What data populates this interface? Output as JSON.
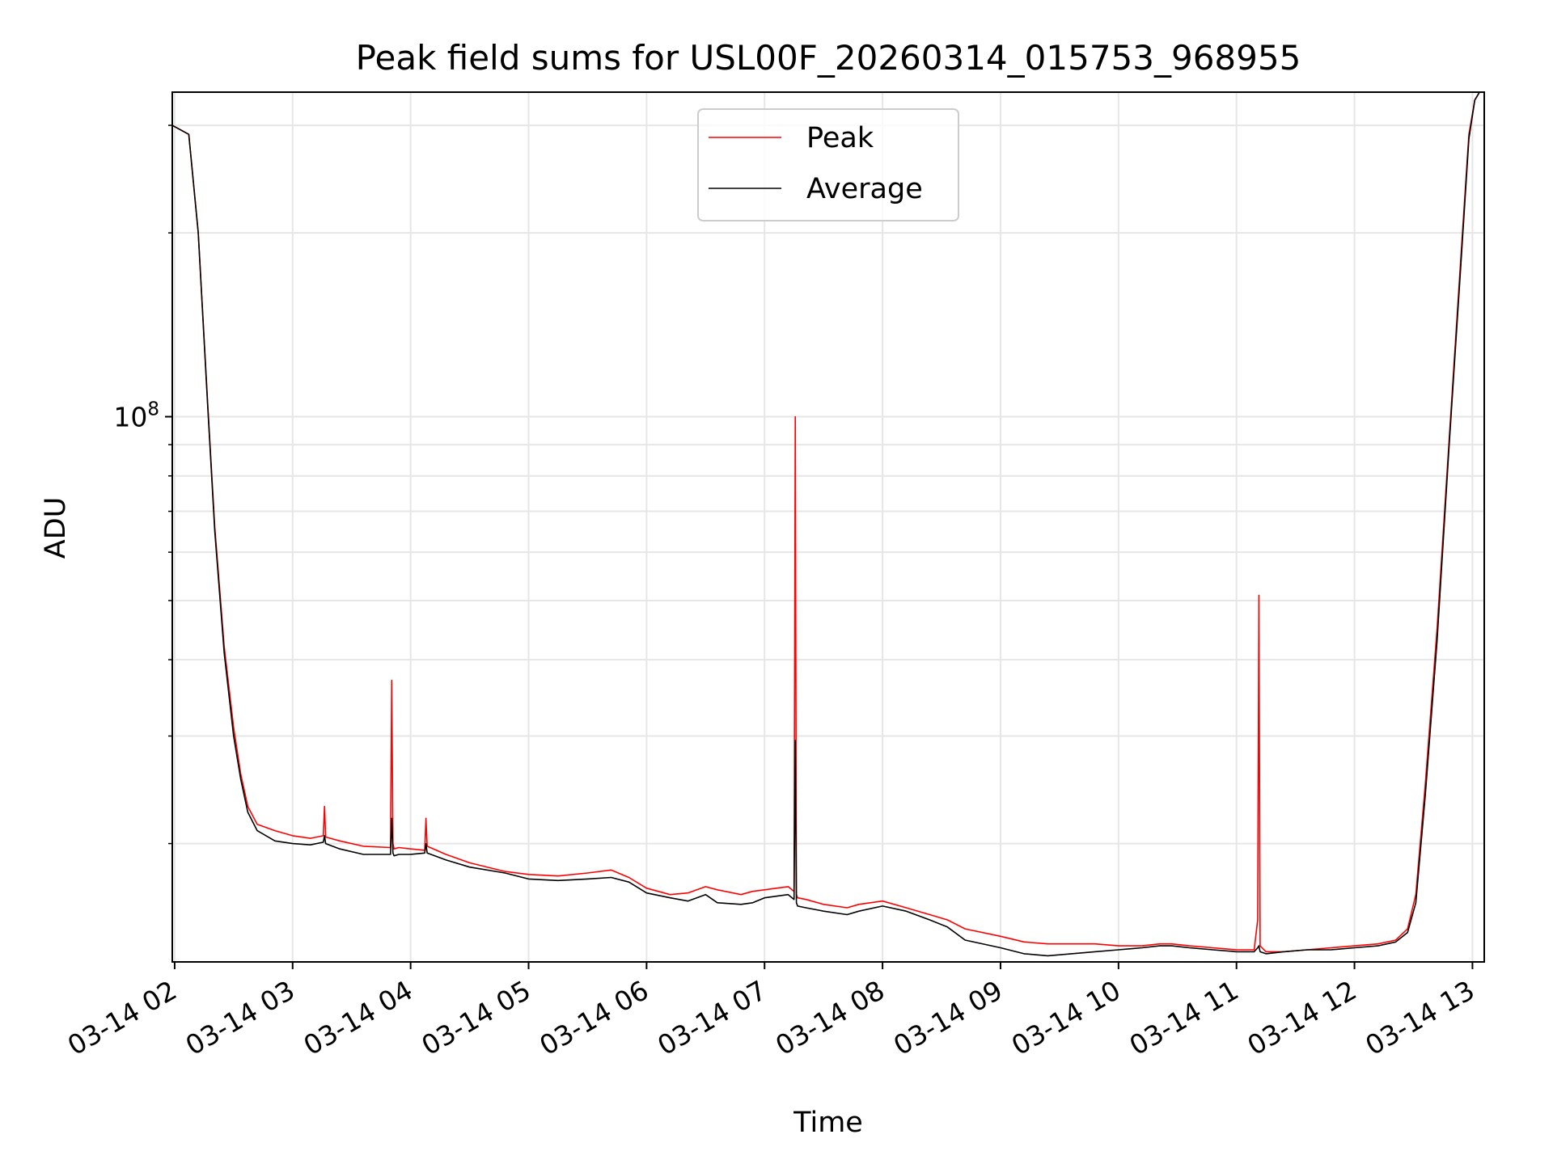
{
  "chart_data": {
    "type": "line",
    "title": "Peak field sums for USL00F_20260314_015753_968955",
    "xlabel": "Time",
    "ylabel": "ADU",
    "yscale": "log",
    "ylim": [
      12800000,
      340000000
    ],
    "xlim": [
      1.98,
      13.1
    ],
    "x_tick_values": [
      2,
      3,
      4,
      5,
      6,
      7,
      8,
      9,
      10,
      11,
      12,
      13
    ],
    "x_tick_labels": [
      "03-14 02",
      "03-14 03",
      "03-14 04",
      "03-14 05",
      "03-14 06",
      "03-14 07",
      "03-14 08",
      "03-14 09",
      "03-14 10",
      "03-14 11",
      "03-14 12",
      "03-14 13"
    ],
    "y_tick_label_base": "10",
    "y_tick_label_exp": "8",
    "y_major_tick": 100000000,
    "y_minor_ticks": [
      20000000,
      30000000,
      40000000,
      50000000,
      60000000,
      70000000,
      80000000,
      90000000,
      200000000,
      300000000
    ],
    "grid": true,
    "legend": {
      "position": "upper center",
      "entries": [
        "Peak",
        "Average"
      ]
    },
    "colors": {
      "Peak": "#ff0000",
      "Average": "#000000"
    },
    "series": [
      {
        "name": "Peak",
        "x": [
          1.98,
          2.12,
          2.2,
          2.28,
          2.34,
          2.42,
          2.5,
          2.56,
          2.62,
          2.7,
          2.85,
          3.0,
          3.15,
          3.26,
          3.27,
          3.28,
          3.4,
          3.6,
          3.83,
          3.84,
          3.85,
          3.86,
          3.9,
          4.0,
          4.12,
          4.13,
          4.14,
          4.3,
          4.5,
          4.8,
          5.0,
          5.25,
          5.5,
          5.7,
          5.85,
          6.0,
          6.2,
          6.35,
          6.5,
          6.6,
          6.8,
          6.9,
          7.0,
          7.1,
          7.2,
          7.25,
          7.26,
          7.27,
          7.28,
          7.35,
          7.5,
          7.7,
          7.8,
          8.0,
          8.2,
          8.4,
          8.55,
          8.7,
          9.0,
          9.2,
          9.4,
          9.6,
          9.8,
          10.0,
          10.2,
          10.35,
          10.45,
          10.6,
          10.8,
          11.0,
          11.15,
          11.18,
          11.19,
          11.2,
          11.25,
          11.4,
          11.6,
          11.8,
          12.0,
          12.2,
          12.35,
          12.45,
          12.52,
          12.6,
          12.7,
          12.8,
          12.9,
          12.97,
          13.02,
          13.06,
          13.1
        ],
        "y": [
          300000000,
          290000000,
          200000000,
          105000000,
          66000000,
          42000000,
          31000000,
          26000000,
          23000000,
          21500000,
          21000000,
          20600000,
          20400000,
          20600000,
          23000000,
          20500000,
          20200000,
          19800000,
          19700000,
          37000000,
          20000000,
          19600000,
          19700000,
          19600000,
          19500000,
          22000000,
          19800000,
          19200000,
          18600000,
          18000000,
          17800000,
          17700000,
          17900000,
          18100000,
          17600000,
          16900000,
          16500000,
          16600000,
          17000000,
          16800000,
          16500000,
          16700000,
          16800000,
          16900000,
          17000000,
          16700000,
          100000000,
          16500000,
          16300000,
          16200000,
          15900000,
          15700000,
          15900000,
          16100000,
          15700000,
          15300000,
          15000000,
          14500000,
          14100000,
          13800000,
          13700000,
          13700000,
          13700000,
          13600000,
          13600000,
          13700000,
          13700000,
          13600000,
          13500000,
          13400000,
          13400000,
          15000000,
          51000000,
          13600000,
          13300000,
          13300000,
          13400000,
          13500000,
          13600000,
          13700000,
          13900000,
          14500000,
          16500000,
          25000000,
          45000000,
          90000000,
          180000000,
          290000000,
          330000000,
          340000000,
          340000000
        ]
      },
      {
        "name": "Average",
        "x": [
          1.98,
          2.12,
          2.2,
          2.28,
          2.34,
          2.42,
          2.5,
          2.56,
          2.62,
          2.7,
          2.85,
          3.0,
          3.15,
          3.26,
          3.27,
          3.28,
          3.4,
          3.6,
          3.83,
          3.84,
          3.85,
          3.86,
          3.9,
          4.0,
          4.12,
          4.13,
          4.14,
          4.3,
          4.5,
          4.8,
          5.0,
          5.25,
          5.5,
          5.7,
          5.85,
          6.0,
          6.2,
          6.35,
          6.5,
          6.6,
          6.8,
          6.9,
          7.0,
          7.1,
          7.2,
          7.25,
          7.26,
          7.27,
          7.28,
          7.35,
          7.5,
          7.7,
          7.8,
          8.0,
          8.2,
          8.4,
          8.55,
          8.7,
          9.0,
          9.2,
          9.4,
          9.6,
          9.8,
          10.0,
          10.2,
          10.35,
          10.45,
          10.6,
          10.8,
          11.0,
          11.15,
          11.18,
          11.19,
          11.2,
          11.25,
          11.4,
          11.6,
          11.8,
          12.0,
          12.2,
          12.35,
          12.45,
          12.52,
          12.6,
          12.7,
          12.8,
          12.9,
          12.97,
          13.02,
          13.06,
          13.1
        ],
        "y": [
          300000000,
          290000000,
          200000000,
          104000000,
          65000000,
          41000000,
          30000000,
          25500000,
          22500000,
          21000000,
          20200000,
          20000000,
          19900000,
          20100000,
          20600000,
          20000000,
          19600000,
          19200000,
          19200000,
          22000000,
          19300000,
          19100000,
          19200000,
          19200000,
          19300000,
          20000000,
          19300000,
          18800000,
          18300000,
          17900000,
          17500000,
          17400000,
          17500000,
          17600000,
          17300000,
          16600000,
          16300000,
          16100000,
          16500000,
          16000000,
          15900000,
          16000000,
          16300000,
          16400000,
          16500000,
          16200000,
          29500000,
          16000000,
          15800000,
          15700000,
          15500000,
          15300000,
          15500000,
          15800000,
          15500000,
          15000000,
          14600000,
          13900000,
          13500000,
          13200000,
          13100000,
          13200000,
          13300000,
          13400000,
          13500000,
          13600000,
          13600000,
          13500000,
          13400000,
          13300000,
          13300000,
          13500000,
          13600000,
          13300000,
          13200000,
          13300000,
          13400000,
          13400000,
          13500000,
          13600000,
          13800000,
          14300000,
          16000000,
          24000000,
          43000000,
          88000000,
          175000000,
          285000000,
          330000000,
          340000000,
          340000000
        ]
      }
    ]
  }
}
